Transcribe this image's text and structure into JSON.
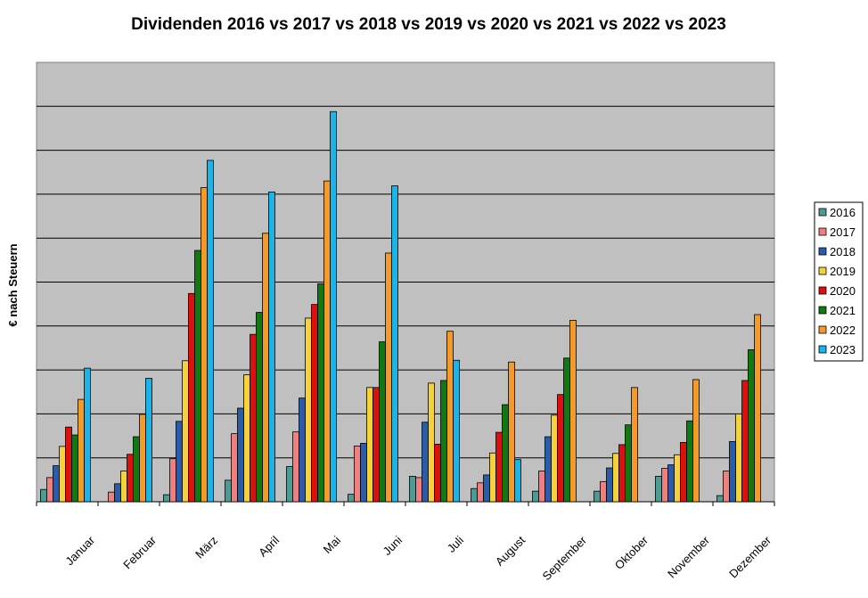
{
  "chart_data": {
    "type": "bar",
    "title": "Dividenden 2016 vs 2017 vs 2018 vs 2019 vs 2020 vs 2021 vs 2022 vs 2023",
    "xlabel": "",
    "ylabel": "€ nach Steuern",
    "ylim": [
      0,
      10
    ],
    "grid": true,
    "legend_position": "right",
    "categories": [
      "Januar",
      "Februar",
      "März",
      "April",
      "Mai",
      "Juni",
      "Juli",
      "August",
      "September",
      "Oktober",
      "November",
      "Dezember"
    ],
    "series": [
      {
        "name": "2016",
        "color": "#4a9c94",
        "values": [
          0.28,
          0.0,
          0.16,
          0.49,
          0.8,
          0.17,
          0.58,
          0.3,
          0.24,
          0.24,
          0.58,
          0.14
        ]
      },
      {
        "name": "2017",
        "color": "#f08080",
        "values": [
          0.55,
          0.22,
          0.98,
          1.55,
          1.59,
          1.27,
          0.55,
          0.43,
          0.7,
          0.46,
          0.76,
          0.7
        ]
      },
      {
        "name": "2018",
        "color": "#2a5caa",
        "values": [
          0.82,
          0.41,
          1.83,
          2.13,
          2.36,
          1.33,
          1.81,
          0.61,
          1.48,
          0.77,
          0.84,
          1.37
        ]
      },
      {
        "name": "2019",
        "color": "#f5d23a",
        "values": [
          1.26,
          0.7,
          3.21,
          2.89,
          4.18,
          2.6,
          2.7,
          1.11,
          1.97,
          1.1,
          1.07,
          2.0
        ]
      },
      {
        "name": "2020",
        "color": "#dd1010",
        "values": [
          1.7,
          1.08,
          4.74,
          3.81,
          4.49,
          2.6,
          1.31,
          1.58,
          2.44,
          1.3,
          1.35,
          2.76
        ]
      },
      {
        "name": "2021",
        "color": "#127812",
        "values": [
          1.52,
          1.48,
          5.72,
          4.31,
          4.96,
          3.64,
          2.76,
          2.21,
          3.27,
          1.75,
          1.84,
          3.46
        ]
      },
      {
        "name": "2022",
        "color": "#f39a28",
        "values": [
          2.33,
          1.99,
          7.15,
          6.11,
          7.3,
          5.66,
          3.88,
          3.18,
          4.13,
          2.6,
          2.78,
          4.26
        ]
      },
      {
        "name": "2023",
        "color": "#1ab4e8",
        "values": [
          3.04,
          2.81,
          7.77,
          7.05,
          8.88,
          7.19,
          3.22,
          0.96,
          0.0,
          0.0,
          0.0,
          0.0
        ]
      }
    ]
  }
}
